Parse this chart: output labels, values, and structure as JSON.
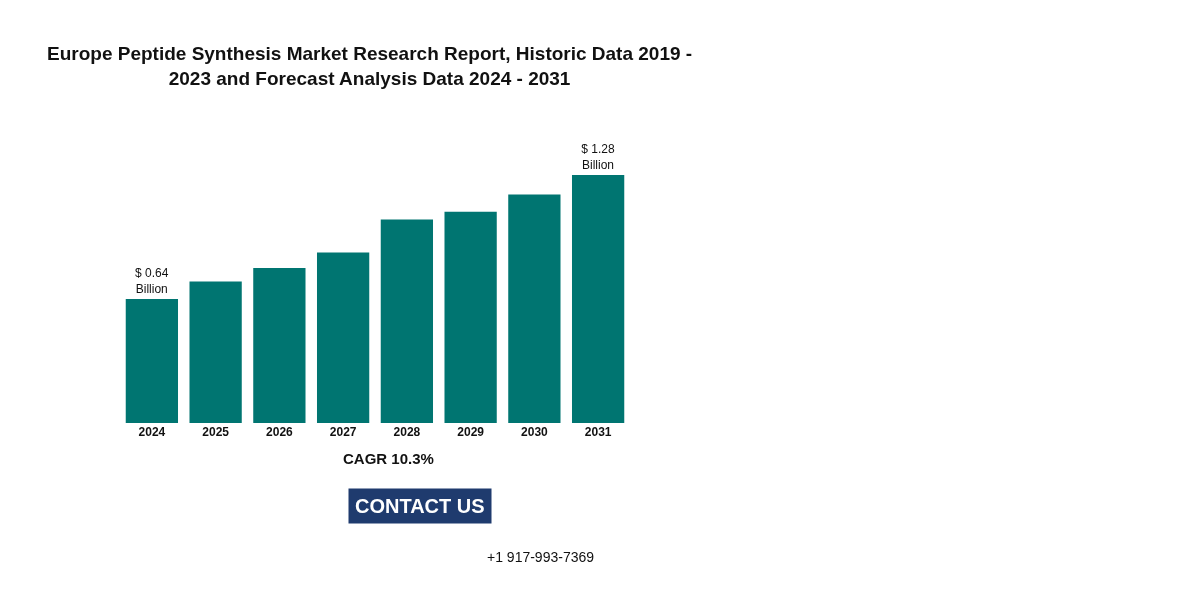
{
  "chart_data": {
    "type": "bar",
    "title": "Europe Peptide Synthesis Market Research Report, Historic Data 2019 -\n2023 and Forecast Analysis Data 2024 - 2031",
    "categories": [
      "2024",
      "2025",
      "2026",
      "2027",
      "2028",
      "2029",
      "2030",
      "2031"
    ],
    "values": [
      0.64,
      0.73,
      0.8,
      0.88,
      1.05,
      1.09,
      1.18,
      1.28
    ],
    "value_labels": [
      "$ 0.64\nBillion",
      null,
      null,
      null,
      null,
      null,
      null,
      "$ 1.28\nBillion"
    ],
    "color": "#007571",
    "annotations": [
      "CAGR 10.3%",
      "CONTACT US",
      "+1 917-993-7369"
    ],
    "legend": false
  }
}
